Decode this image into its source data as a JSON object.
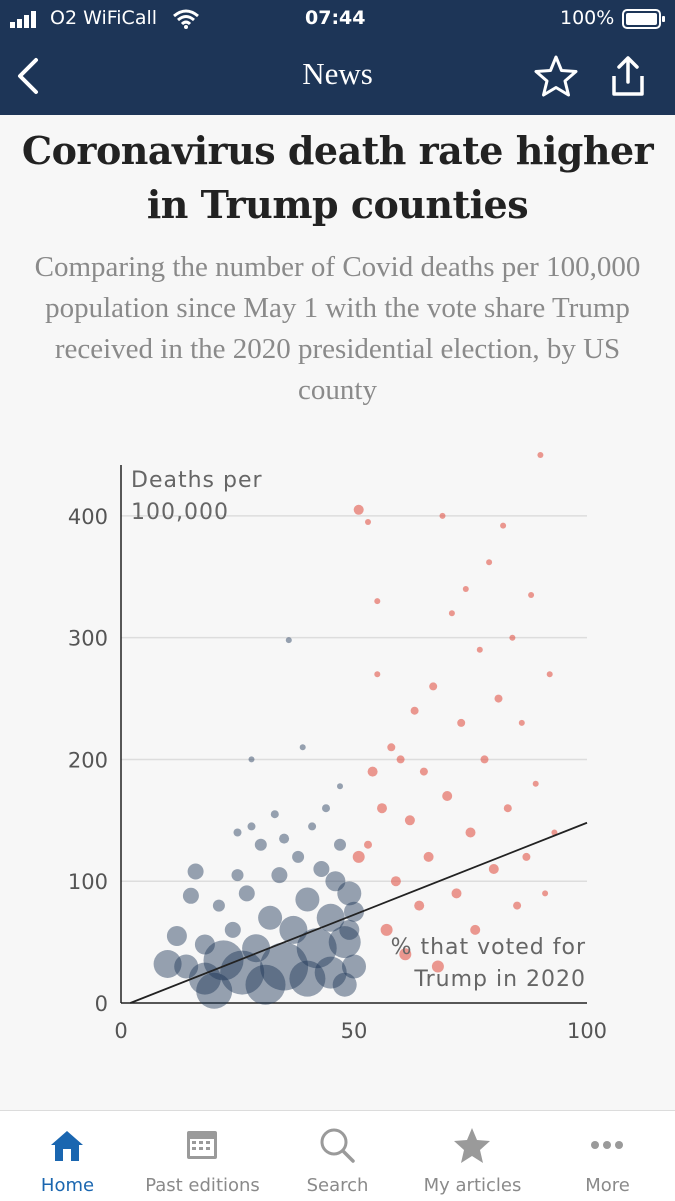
{
  "status_bar": {
    "carrier": "O2 WiFiCall",
    "time": "07:44",
    "battery": "100%"
  },
  "nav": {
    "title": "News",
    "back_icon": "chevron-left-icon",
    "bookmark_icon": "star-icon",
    "share_icon": "share-icon"
  },
  "article": {
    "headline": "Coronavirus death rate higher in Trump counties",
    "subheading": "Comparing the number of Covid deaths per 100,000 population since May 1 with the vote share Trump received in the 2020 presidential election, by US county"
  },
  "chart_data": {
    "type": "scatter",
    "ylabel": "Deaths per 100,000",
    "xlabel": "% that voted for Trump in 2020",
    "xlim": [
      0,
      100
    ],
    "ylim": [
      0,
      450
    ],
    "x_ticks": [
      0,
      50,
      100
    ],
    "y_ticks": [
      0,
      100,
      200,
      300,
      400
    ],
    "grid": "horizontal",
    "colors": {
      "under_50": "#1d3557",
      "over_50": "#e0483b",
      "trend_line": "#222222"
    },
    "trend_line": {
      "x": [
        2,
        100
      ],
      "y": [
        0,
        148
      ]
    },
    "points": [
      [
        10,
        32,
        14
      ],
      [
        12,
        55,
        10
      ],
      [
        14,
        30,
        12
      ],
      [
        15,
        88,
        8
      ],
      [
        16,
        108,
        8
      ],
      [
        18,
        20,
        16
      ],
      [
        18,
        48,
        10
      ],
      [
        20,
        10,
        18
      ],
      [
        21,
        80,
        6
      ],
      [
        22,
        35,
        20
      ],
      [
        24,
        60,
        8
      ],
      [
        25,
        140,
        4
      ],
      [
        25,
        105,
        6
      ],
      [
        26,
        25,
        22
      ],
      [
        27,
        90,
        8
      ],
      [
        28,
        145,
        4
      ],
      [
        28,
        200,
        3
      ],
      [
        29,
        45,
        14
      ],
      [
        30,
        130,
        6
      ],
      [
        31,
        15,
        20
      ],
      [
        32,
        70,
        12
      ],
      [
        33,
        155,
        4
      ],
      [
        34,
        105,
        8
      ],
      [
        35,
        30,
        24
      ],
      [
        35,
        135,
        5
      ],
      [
        36,
        298,
        3
      ],
      [
        37,
        60,
        14
      ],
      [
        38,
        120,
        6
      ],
      [
        39,
        210,
        3
      ],
      [
        40,
        20,
        18
      ],
      [
        40,
        85,
        12
      ],
      [
        41,
        145,
        4
      ],
      [
        42,
        45,
        20
      ],
      [
        43,
        110,
        8
      ],
      [
        44,
        160,
        4
      ],
      [
        45,
        25,
        16
      ],
      [
        45,
        70,
        14
      ],
      [
        46,
        100,
        10
      ],
      [
        47,
        130,
        6
      ],
      [
        47,
        178,
        3
      ],
      [
        48,
        50,
        16
      ],
      [
        48,
        15,
        12
      ],
      [
        49,
        90,
        12
      ],
      [
        49,
        60,
        10
      ],
      [
        50,
        75,
        10
      ],
      [
        50,
        30,
        12
      ],
      [
        51,
        120,
        6
      ],
      [
        51,
        405,
        5
      ],
      [
        53,
        395,
        3
      ],
      [
        55,
        330,
        3
      ],
      [
        55,
        270,
        3
      ],
      [
        54,
        190,
        5
      ],
      [
        53,
        130,
        4
      ],
      [
        56,
        160,
        5
      ],
      [
        57,
        60,
        6
      ],
      [
        58,
        210,
        4
      ],
      [
        59,
        100,
        5
      ],
      [
        60,
        200,
        4
      ],
      [
        61,
        40,
        6
      ],
      [
        62,
        150,
        5
      ],
      [
        63,
        240,
        4
      ],
      [
        64,
        80,
        5
      ],
      [
        65,
        190,
        4
      ],
      [
        66,
        120,
        5
      ],
      [
        67,
        260,
        4
      ],
      [
        68,
        30,
        6
      ],
      [
        69,
        400,
        3
      ],
      [
        70,
        170,
        5
      ],
      [
        71,
        320,
        3
      ],
      [
        72,
        90,
        5
      ],
      [
        73,
        230,
        4
      ],
      [
        74,
        340,
        3
      ],
      [
        75,
        140,
        5
      ],
      [
        76,
        60,
        5
      ],
      [
        77,
        290,
        3
      ],
      [
        78,
        200,
        4
      ],
      [
        79,
        362,
        3
      ],
      [
        80,
        110,
        5
      ],
      [
        81,
        250,
        4
      ],
      [
        82,
        392,
        3
      ],
      [
        83,
        160,
        4
      ],
      [
        84,
        300,
        3
      ],
      [
        85,
        80,
        4
      ],
      [
        86,
        230,
        3
      ],
      [
        87,
        120,
        4
      ],
      [
        88,
        335,
        3
      ],
      [
        89,
        180,
        3
      ],
      [
        90,
        450,
        3
      ],
      [
        91,
        90,
        3
      ],
      [
        92,
        270,
        3
      ],
      [
        93,
        140,
        3
      ]
    ]
  }
}
